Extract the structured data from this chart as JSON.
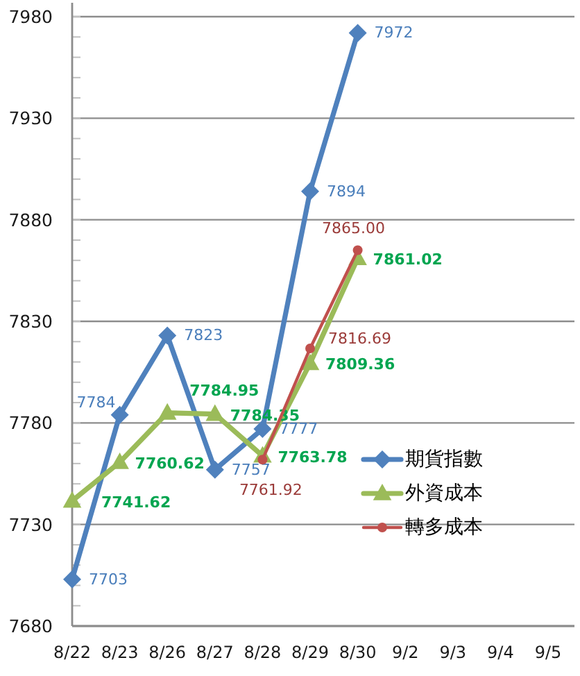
{
  "chart_data": {
    "type": "line",
    "categories": [
      "8/22",
      "8/23",
      "8/26",
      "8/27",
      "8/28",
      "8/29",
      "8/30",
      "9/2",
      "9/3",
      "9/4",
      "9/5"
    ],
    "ylim": [
      7680,
      7980
    ],
    "yticks": [
      7680,
      7730,
      7780,
      7830,
      7880,
      7930,
      7980
    ],
    "grid": "y",
    "legend": "right",
    "line_style": "solid",
    "series": [
      {
        "name": "期貨指數",
        "color": "#4f81bd",
        "marker": "diamond",
        "values": [
          7703,
          7784,
          7823,
          7757,
          7777,
          7894,
          7972,
          null,
          null,
          null,
          null
        ],
        "value_labels": [
          "7703",
          "7784",
          "7823",
          "7757",
          "7777",
          "7894",
          "7972",
          null,
          null,
          null,
          null
        ]
      },
      {
        "name": "外資成本",
        "color": "#9bbb59",
        "marker": "triangle",
        "values": [
          7741.62,
          7760.62,
          7784.95,
          7784.35,
          7763.78,
          7809.36,
          7861.02,
          null,
          null,
          null,
          null
        ],
        "value_labels": [
          "7741.62",
          "7760.62",
          "7784.95",
          "7784.35",
          "7763.78",
          "7809.36",
          "7861.02",
          null,
          null,
          null,
          null
        ]
      },
      {
        "name": "轉多成本",
        "color": "#c0504d",
        "marker": "circle",
        "values": [
          null,
          null,
          null,
          null,
          7761.92,
          7816.69,
          7865.0,
          null,
          null,
          null,
          null
        ],
        "value_labels": [
          null,
          null,
          null,
          null,
          "7761.92",
          "7816.69",
          "7865.00",
          null,
          null,
          null,
          null
        ]
      }
    ]
  }
}
